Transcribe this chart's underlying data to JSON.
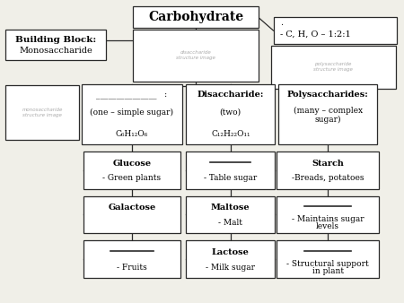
{
  "bg_color": "#f0efe8",
  "box_color": "#ffffff",
  "border_color": "#2a2a2a",
  "title": "Carbohydrate",
  "building_block_title": "Building Block:",
  "building_block_sub": "Monosaccharide",
  "ratio_line": ".",
  "ratio_text": "- C, H, O – 1:2:1",
  "mono_label_line": "_______________   :",
  "mono_label_sub1": "(one – simple sugar)",
  "mono_formula": "C₆H₁₂O₆",
  "disaccharide_title": "Disaccharide:",
  "disaccharide_sub1": "(two)",
  "disaccharide_formula": "C₁₂H₂₂O₁₁",
  "poly_title": "Polysaccharides:",
  "poly_sub1": "(many – complex",
  "poly_sub2": "sugar)",
  "mono_boxes": [
    {
      "title": "Glucose",
      "bold": true,
      "sub": "- Green plants"
    },
    {
      "title": "Galactose",
      "bold": true,
      "sub": ""
    },
    {
      "title": "",
      "bold": false,
      "sub": "- Fruits",
      "has_line": true
    }
  ],
  "di_boxes": [
    {
      "title": "",
      "bold": false,
      "sub": "- Table sugar",
      "has_line": true
    },
    {
      "title": "Maltose",
      "bold": true,
      "sub": "- Malt"
    },
    {
      "title": "Lactose",
      "bold": true,
      "sub": "- Milk sugar"
    }
  ],
  "poly_boxes": [
    {
      "title": "Starch",
      "bold": true,
      "sub": "-Breads, potatoes"
    },
    {
      "title": "",
      "bold": false,
      "sub": "- Maintains sugar\nlevels",
      "has_line": true
    },
    {
      "title": "",
      "bold": false,
      "sub": "- Structural support\nin plant",
      "has_line": true
    }
  ]
}
